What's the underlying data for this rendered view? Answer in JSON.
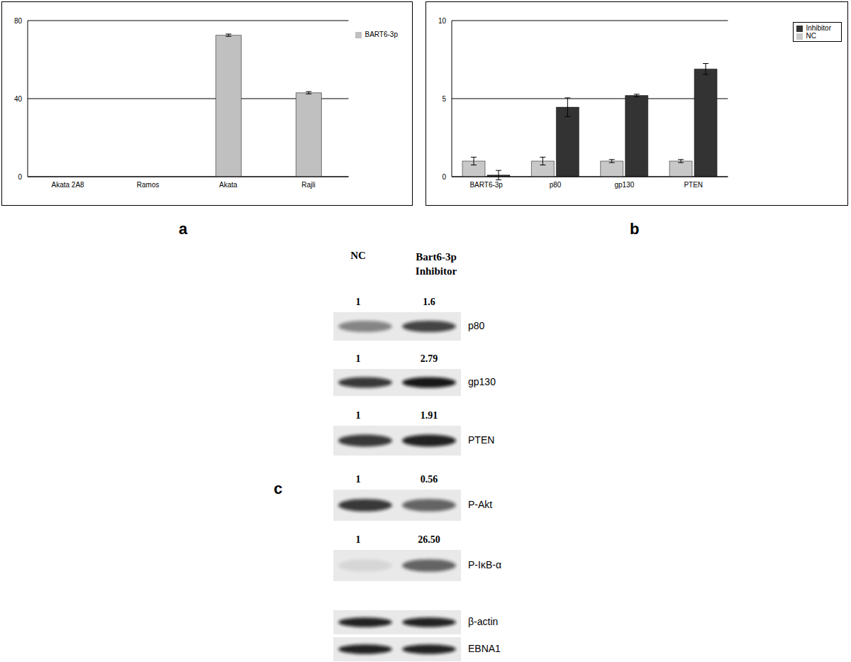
{
  "chart_data": [
    {
      "type": "bar",
      "panel_label": "a",
      "categories": [
        "Akata 2A8",
        "Ramos",
        "Akata",
        "Rajli"
      ],
      "series": [
        {
          "name": "BART6-3p",
          "color": "#c0c0c0",
          "values": [
            0,
            0,
            72.5,
            43
          ],
          "errors": [
            0,
            0,
            0.6,
            0.6
          ]
        }
      ],
      "ylim": [
        0,
        80
      ],
      "yticks": [
        0,
        40,
        80
      ],
      "grid": true,
      "legend": "upper right"
    },
    {
      "type": "bar",
      "panel_label": "b",
      "categories": [
        "BART6-3p",
        "p80",
        "gp130",
        "PTEN"
      ],
      "series": [
        {
          "name": "NC",
          "color": "#c8c8c8",
          "values": [
            1,
            1,
            1,
            1
          ],
          "errors": [
            0.25,
            0.25,
            0.1,
            0.1
          ]
        },
        {
          "name": "Inhibitor",
          "color": "#333333",
          "values": [
            0.1,
            4.45,
            5.2,
            6.9
          ],
          "errors": [
            0.3,
            0.6,
            0.08,
            0.35
          ]
        }
      ],
      "ylim": [
        0,
        10
      ],
      "yticks": [
        0,
        5,
        10
      ],
      "grid": true,
      "legend": "upper right"
    }
  ],
  "blot": {
    "panel_label": "c",
    "columns": [
      "NC",
      "Bart6-3p Inhibitor"
    ],
    "rows": [
      {
        "name": "p80",
        "values": [
          "1",
          "1.6"
        ]
      },
      {
        "name": "gp130",
        "values": [
          "1",
          "2.79"
        ]
      },
      {
        "name": "PTEN",
        "values": [
          "1",
          "1.91"
        ]
      },
      {
        "name": "P-Akt",
        "values": [
          "1",
          "0.56"
        ]
      },
      {
        "name": "P-IκB-α",
        "values": [
          "1",
          "26.50"
        ]
      },
      {
        "name": "β-actin",
        "values": []
      },
      {
        "name": "EBNA1",
        "values": []
      }
    ]
  }
}
